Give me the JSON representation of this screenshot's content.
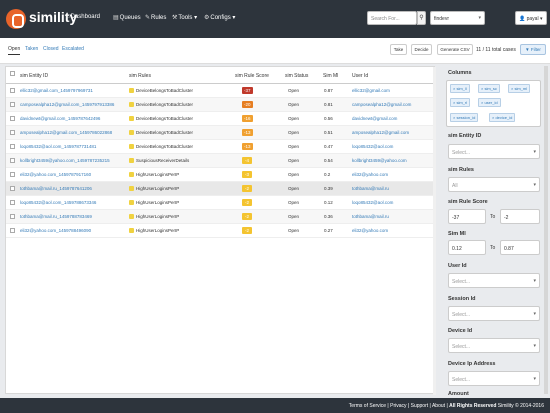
{
  "brand": {
    "name": "simility"
  },
  "nav": [
    {
      "icon": "home-icon",
      "glyph": "⌂",
      "label": "Dashboard"
    },
    {
      "icon": "queue-icon",
      "glyph": "▤",
      "label": "Queues"
    },
    {
      "icon": "rules-icon",
      "glyph": "✎",
      "label": "Rules"
    },
    {
      "icon": "tools-icon",
      "glyph": "⚒",
      "label": "Tools ▾"
    },
    {
      "icon": "gear-icon",
      "glyph": "⚙",
      "label": "Configs ▾"
    }
  ],
  "search": {
    "placeholder": "Search For..."
  },
  "scope": {
    "value": "findevr"
  },
  "user": {
    "name": "payal ▾"
  },
  "tabs": [
    "Open",
    "Taken",
    "Closed",
    "Escalated"
  ],
  "actions": {
    "take": "Take",
    "decide": "Decide",
    "csv": "Generate CSV",
    "filter": "Filter"
  },
  "total_label": "11 / 11 total cases",
  "table": {
    "headers": [
      "sim Entity ID",
      "sim Rules",
      "sim Rule Score",
      "sim Status",
      "Sim Ml",
      "User Id"
    ],
    "rows": [
      {
        "id": "ellic32@gmail.com_1459797969731",
        "rule": "DeviceBelongsToBadCluster",
        "score": "-37",
        "score_color": "#c0392b",
        "status": "Open",
        "ml": "0.87",
        "user": "ellic32@gmail.com"
      },
      {
        "id": "camposealpha12@gmail.com_1459797913386",
        "rule": "DeviceBelongsToBadCluster",
        "score": "-20",
        "score_color": "#e67e22",
        "status": "Open",
        "ml": "0.81",
        "user": "camposealpha12@gmail.com"
      },
      {
        "id": "davidnewt@gmail.com_1459787642496",
        "rule": "DeviceBelongsToBadCluster",
        "score": "-16",
        "score_color": "#f0a030",
        "status": "Open",
        "ml": "0.56",
        "user": "davidnewt@gmail.com"
      },
      {
        "id": "amposealpha12@gmail.com_1459786022868",
        "rule": "DeviceBelongsToBadCluster",
        "score": "-13",
        "score_color": "#f0a030",
        "status": "Open",
        "ml": "0.51",
        "user": "amposealpha12@gmail.com"
      },
      {
        "id": "loqo85432@aol.com_1459787731481",
        "rule": "DeviceBelongsToBadCluster",
        "score": "-13",
        "score_color": "#f0a030",
        "status": "Open",
        "ml": "0.47",
        "user": "loqo85432@aol.com"
      },
      {
        "id": "kollbright3459@yahoo.com_1459787235215",
        "rule": "SuspiciousReceiverDetails",
        "score": "-4",
        "score_color": "#f4c430",
        "status": "Open",
        "ml": "0.54",
        "user": "kollbright3459@yahoo.com"
      },
      {
        "id": "eli32@yahoo.com_1459787917160",
        "rule": "HighUserLoginsPerIP",
        "score": "-3",
        "score_color": "#f4c430",
        "status": "Open",
        "ml": "0.2",
        "user": "eli32@yahoo.com"
      },
      {
        "id": "tothbama@mail.ru_1459787641206",
        "rule": "HighUserLoginsPerIP",
        "score": "-2",
        "score_color": "#f4c430",
        "status": "Open",
        "ml": "0.39",
        "user": "tothbama@mail.ru"
      },
      {
        "id": "loqo85432@aol.com_1459788673346",
        "rule": "HighUserLoginsPerIP",
        "score": "-2",
        "score_color": "#f4c430",
        "status": "Open",
        "ml": "0.12",
        "user": "loqo85432@aol.com"
      },
      {
        "id": "tothbama@mail.ru_1459788783469",
        "rule": "HighUserLoginsPerIP",
        "score": "-2",
        "score_color": "#f4c430",
        "status": "Open",
        "ml": "0.36",
        "user": "tothbama@mail.ru"
      },
      {
        "id": "eli32@yahoo.com_1459788496090",
        "rule": "HighUserLoginsPerIP",
        "score": "-2",
        "score_color": "#f4c430",
        "status": "Open",
        "ml": "0.27",
        "user": "eli32@yahoo.com"
      }
    ]
  },
  "filters": {
    "columns_label": "Columns",
    "column_chips": [
      "× sim_ll",
      "× sim_sc",
      "× sim_ml",
      "× sim_rl",
      "× user_id",
      "× session_id",
      "× device_id"
    ],
    "entity_label": "sim Entity ID",
    "entity_placeholder": "Select...",
    "rules_label": "sim Rules",
    "rules_value": "All",
    "score_label": "sim Rule Score",
    "score_from": "-37",
    "score_to": "-2",
    "to_label": "To",
    "ml_label": "Sim Ml",
    "ml_from": "0.12",
    "ml_to": "0.87",
    "userid_label": "User Id",
    "userid_placeholder": "Select...",
    "session_label": "Session Id",
    "session_placeholder": "Select...",
    "device_label": "Device Id",
    "device_placeholder": "Select...",
    "deviceip_label": "Device Ip Address",
    "deviceip_placeholder": "Select...",
    "amount_label": "Amount"
  },
  "footer": {
    "terms": "Terms of Service",
    "privacy": "Privacy",
    "support": "Support",
    "about": "About",
    "rights": "All Rights Reserved",
    "copyright": "Simility © 2014-2016",
    "sep": "|"
  }
}
